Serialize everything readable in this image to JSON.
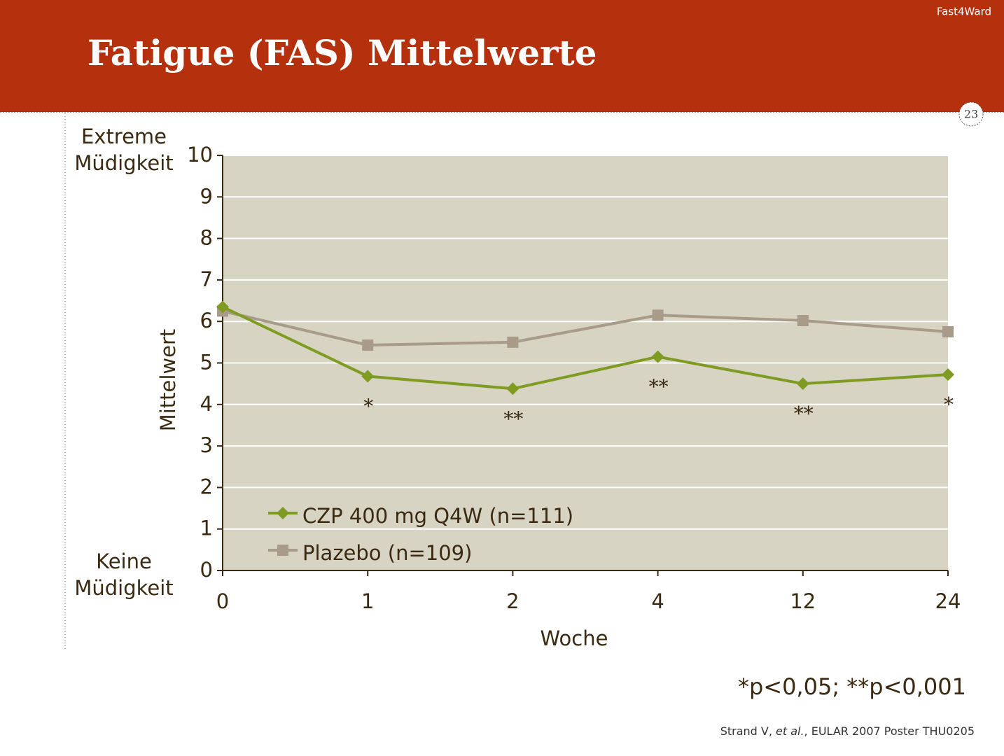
{
  "header": {
    "title": "Fatigue (FAS) Mittelwerte",
    "brand": "Fast4Ward",
    "page_number": "23"
  },
  "chart_data": {
    "type": "line",
    "categories": [
      "0",
      "1",
      "2",
      "4",
      "12",
      "24"
    ],
    "series": [
      {
        "name": "CZP 400 mg Q4W (n=111)",
        "color": "#7f9b21",
        "marker": "diamond",
        "values": [
          6.35,
          4.68,
          4.38,
          5.15,
          4.5,
          4.72
        ]
      },
      {
        "name": "Plazebo (n=109)",
        "color": "#a89b8a",
        "marker": "square",
        "values": [
          6.25,
          5.43,
          5.5,
          6.15,
          6.02,
          5.75
        ]
      }
    ],
    "significance": [
      null,
      "*",
      "**",
      "**",
      "**",
      "*"
    ],
    "ylim": [
      0,
      10
    ],
    "yticks": [
      0,
      1,
      2,
      3,
      4,
      5,
      6,
      7,
      8,
      9,
      10
    ],
    "grid": true,
    "ylabel": "Mittelwert",
    "xlabel": "Woche",
    "ylabel_top": [
      "Extreme",
      "Müdigkeit"
    ],
    "ylabel_bottom": [
      "Keine",
      "Müdigkeit"
    ],
    "footnote": "*p<0,05; **p<0,001"
  },
  "source": {
    "authors": "Strand V, ",
    "etal": "et al.",
    "rest": ", EULAR 2007 Poster THU0205"
  }
}
